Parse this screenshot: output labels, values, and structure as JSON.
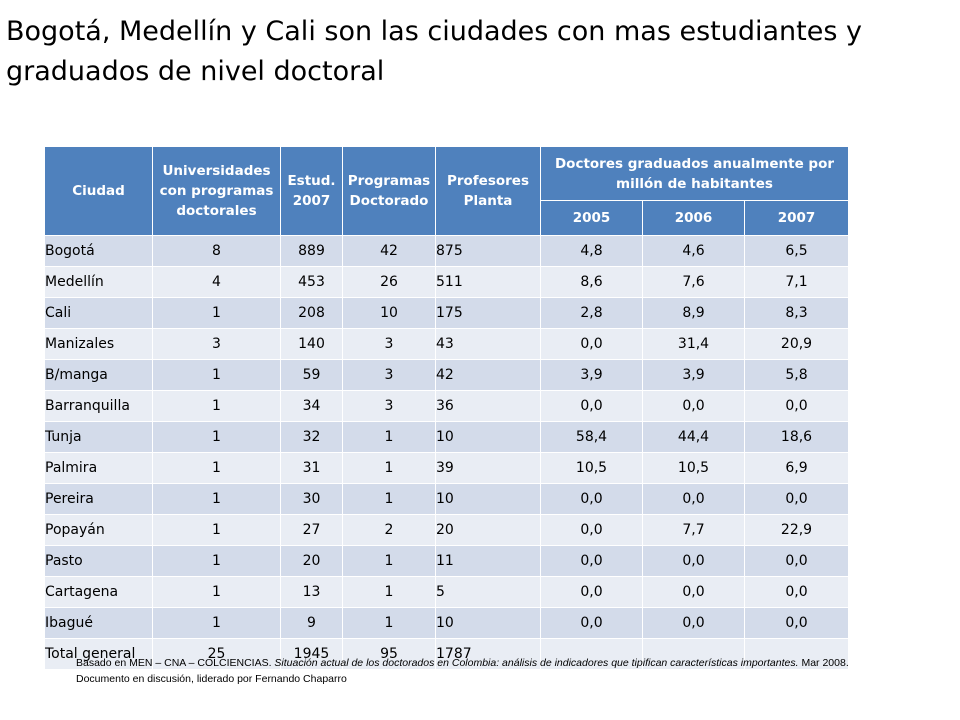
{
  "title": "Bogotá, Medellín y Cali son las ciudades con mas estudiantes y graduados de nivel doctoral",
  "table": {
    "headers": {
      "city": "Ciudad",
      "universities": "Universidades con programas doctorales",
      "students": "Estud. 2007",
      "programs": "Programas Doctorado",
      "professors": "Profesores Planta",
      "doctors_group": "Doctores graduados anualmente por millón de habitantes",
      "years": [
        "2005",
        "2006",
        "2007"
      ]
    },
    "rows": [
      {
        "city": "Bogotá",
        "universities": "8",
        "students": "889",
        "programs": "42",
        "professors": "875",
        "y2005": "4,8",
        "y2006": "4,6",
        "y2007": "6,5"
      },
      {
        "city": "Medellín",
        "universities": "4",
        "students": "453",
        "programs": "26",
        "professors": "511",
        "y2005": "8,6",
        "y2006": "7,6",
        "y2007": "7,1"
      },
      {
        "city": "Cali",
        "universities": "1",
        "students": "208",
        "programs": "10",
        "professors": "175",
        "y2005": "2,8",
        "y2006": "8,9",
        "y2007": "8,3"
      },
      {
        "city": "Manizales",
        "universities": "3",
        "students": "140",
        "programs": "3",
        "professors": "43",
        "y2005": "0,0",
        "y2006": "31,4",
        "y2007": "20,9"
      },
      {
        "city": "B/manga",
        "universities": "1",
        "students": "59",
        "programs": "3",
        "professors": "42",
        "y2005": "3,9",
        "y2006": "3,9",
        "y2007": "5,8"
      },
      {
        "city": "Barranquilla",
        "universities": "1",
        "students": "34",
        "programs": "3",
        "professors": "36",
        "y2005": "0,0",
        "y2006": "0,0",
        "y2007": "0,0"
      },
      {
        "city": "Tunja",
        "universities": "1",
        "students": "32",
        "programs": "1",
        "professors": "10",
        "y2005": "58,4",
        "y2006": "44,4",
        "y2007": "18,6"
      },
      {
        "city": "Palmira",
        "universities": "1",
        "students": "31",
        "programs": "1",
        "professors": "39",
        "y2005": "10,5",
        "y2006": "10,5",
        "y2007": "6,9"
      },
      {
        "city": "Pereira",
        "universities": "1",
        "students": "30",
        "programs": "1",
        "professors": "10",
        "y2005": "0,0",
        "y2006": "0,0",
        "y2007": "0,0"
      },
      {
        "city": "Popayán",
        "universities": "1",
        "students": "27",
        "programs": "2",
        "professors": "20",
        "y2005": "0,0",
        "y2006": "7,7",
        "y2007": "22,9"
      },
      {
        "city": "Pasto",
        "universities": "1",
        "students": "20",
        "programs": "1",
        "professors": "11",
        "y2005": "0,0",
        "y2006": "0,0",
        "y2007": "0,0"
      },
      {
        "city": "Cartagena",
        "universities": "1",
        "students": "13",
        "programs": "1",
        "professors": "5",
        "y2005": "0,0",
        "y2006": "0,0",
        "y2007": "0,0"
      },
      {
        "city": "Ibagué",
        "universities": "1",
        "students": "9",
        "programs": "1",
        "professors": "10",
        "y2005": "0,0",
        "y2006": "0,0",
        "y2007": "0,0"
      },
      {
        "city": "Total general",
        "universities": "25",
        "students": "1945",
        "programs": "95",
        "professors": "1787",
        "y2005": "",
        "y2006": "",
        "y2007": ""
      }
    ]
  },
  "footnote": {
    "prefix": "Basado en MEN – CNA – COLCIENCIAS. ",
    "italic": "Situación actual de los doctorados en Colombia: análisis de indicadores que tipifican características importantes.",
    "suffix": " Mar 2008. Documento en discusión, liderado por Fernando Chaparro"
  },
  "colors": {
    "header_bg": "#4f81bd",
    "row_dark": "#d3dbea",
    "row_light": "#e9edf4"
  }
}
